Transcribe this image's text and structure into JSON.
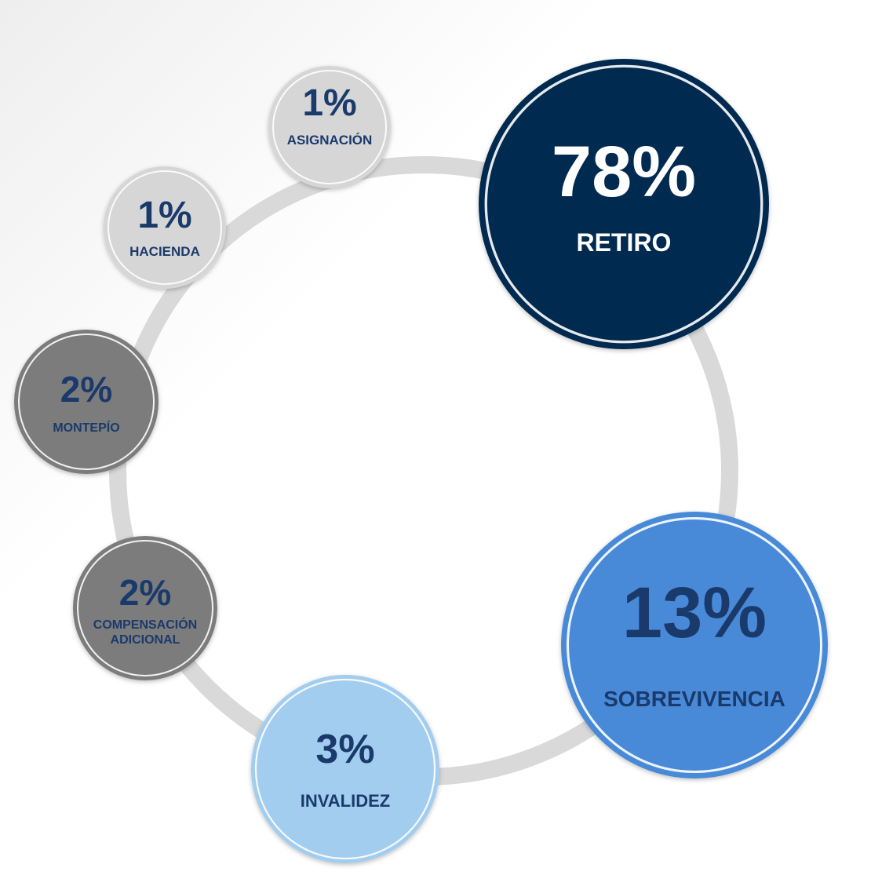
{
  "chart_data": {
    "type": "pie",
    "categories": [
      "RETIRO",
      "SOBREVIVENCIA",
      "INVALIDEZ",
      "COMPENSACIÓN ADICIONAL",
      "MONTEPÍO",
      "HACIENDA",
      "ASIGNACIÓN"
    ],
    "values": [
      78,
      13,
      3,
      2,
      2,
      1,
      1
    ],
    "value_labels": [
      "78%",
      "13%",
      "3%",
      "2%",
      "2%",
      "1%",
      "1%"
    ],
    "category_lines": [
      [
        "RETIRO"
      ],
      [
        "SOBREVIVENCIA"
      ],
      [
        "INVALIDEZ"
      ],
      [
        "COMPENSACIÓN",
        "ADICIONAL"
      ],
      [
        "MONTEPÍO"
      ],
      [
        "HACIENDA"
      ],
      [
        "ASIGNACIÓN"
      ]
    ],
    "fill_colors": [
      "#002a50",
      "#4a8ad8",
      "#a3cdef",
      "#7b7b7b",
      "#7b7b7b",
      "#d6d6d6",
      "#d6d6d6"
    ],
    "text_colors": [
      "#ffffff",
      "#1a3a6b",
      "#1a3a6b",
      "#1a3a6b",
      "#1a3a6b",
      "#1a3a6b",
      "#1a3a6b"
    ],
    "ring_color": "#d9d9d9",
    "legend": "none",
    "style": "bubbles arranged on a ring, size proportional to share"
  }
}
